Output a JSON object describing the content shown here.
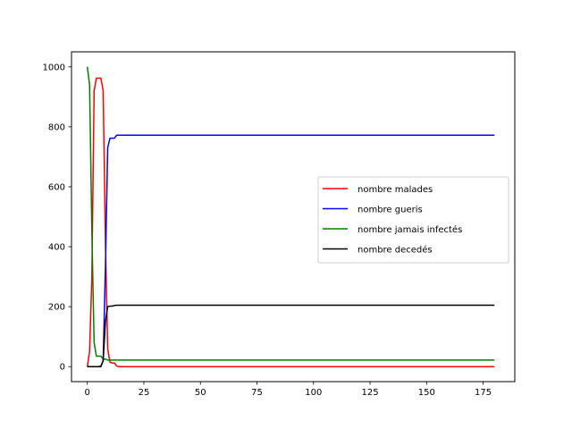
{
  "chart_data": {
    "type": "line",
    "title": "",
    "xlabel": "",
    "ylabel": "",
    "xlim": [
      -7,
      189
    ],
    "ylim": [
      -50,
      1050
    ],
    "xticks": [
      0,
      25,
      50,
      75,
      100,
      125,
      150,
      175
    ],
    "yticks": [
      0,
      200,
      400,
      600,
      800,
      1000
    ],
    "grid": false,
    "legend_position": "center-right",
    "series": [
      {
        "name": "nombre malades",
        "color": "#ff0000",
        "x": [
          0,
          1,
          2,
          3,
          4,
          5,
          6,
          7,
          8,
          9,
          10,
          11,
          12,
          13,
          14,
          20,
          180
        ],
        "y": [
          0,
          50,
          300,
          920,
          962,
          962,
          962,
          920,
          420,
          60,
          15,
          12,
          12,
          2,
          0,
          0,
          0
        ]
      },
      {
        "name": "nombre gueris",
        "color": "#0000ff",
        "x": [
          0,
          5,
          6,
          7,
          8,
          9,
          10,
          11,
          12,
          13,
          14,
          20,
          180
        ],
        "y": [
          0,
          0,
          0,
          20,
          330,
          730,
          762,
          762,
          762,
          772,
          772,
          772,
          772
        ]
      },
      {
        "name": "nombre jamais infectés",
        "color": "#008000",
        "x": [
          0,
          1,
          2,
          3,
          4,
          5,
          6,
          7,
          8,
          9,
          10,
          20,
          180
        ],
        "y": [
          1000,
          940,
          450,
          80,
          35,
          35,
          35,
          25,
          25,
          22,
          22,
          22,
          22
        ]
      },
      {
        "name": "nombre decedés",
        "color": "#000000",
        "x": [
          0,
          5,
          6,
          7,
          8,
          9,
          10,
          11,
          12,
          13,
          14,
          20,
          180
        ],
        "y": [
          0,
          0,
          2,
          20,
          150,
          200,
          202,
          202,
          204,
          205,
          205,
          205,
          205
        ]
      }
    ]
  }
}
